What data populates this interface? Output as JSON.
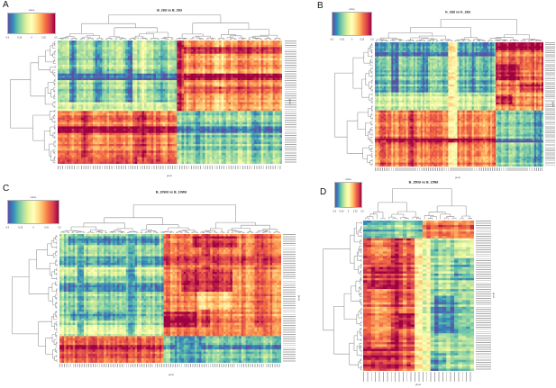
{
  "figure": {
    "background": "#ffffff",
    "colormap": [
      "#5e4fa2",
      "#3288bd",
      "#66c2a5",
      "#abdda4",
      "#e6f598",
      "#ffffbf",
      "#fee08b",
      "#fdae61",
      "#f46d43",
      "#d53e4f",
      "#9e0142"
    ],
    "dendrogram_color": "#8f8f8f",
    "label_text_color": "#555555"
  },
  "panels": [
    {
      "label": "A",
      "title": "B_28d vs B_28d",
      "xlabel": "gene",
      "ylabel": "gene",
      "colorbar": {
        "label": "value",
        "ticks": [
          "-0.5",
          "-0.25",
          "0",
          "0.25",
          "0.5"
        ]
      },
      "chart_data": {
        "type": "heatmap",
        "rows": 56,
        "cols": 96,
        "value_range": [
          -1,
          1
        ],
        "row_dendrogram": true,
        "col_dendrogram": true,
        "seed": 11,
        "texture": {
          "col_stripe": 0.18,
          "row_stripe": 0.14,
          "noise": 0.1
        },
        "blocks": [
          [
            0,
            0.57,
            0,
            0.53,
            -0.42
          ],
          [
            0,
            0.57,
            0.53,
            1,
            0.45
          ],
          [
            0.57,
            1,
            0,
            0.53,
            0.55
          ],
          [
            0.57,
            1,
            0.53,
            1,
            -0.45
          ],
          [
            0,
            0.57,
            0.05,
            0.08,
            -0.75
          ],
          [
            0,
            0.57,
            0.17,
            0.2,
            -0.7
          ],
          [
            0,
            0.57,
            0.3,
            0.33,
            -0.75
          ],
          [
            0,
            0.57,
            0.44,
            0.47,
            -0.65
          ],
          [
            0,
            0.57,
            0.36,
            0.4,
            -0.15
          ],
          [
            0,
            0.57,
            0.53,
            0.565,
            0.9
          ],
          [
            0,
            0.57,
            0.7,
            0.74,
            0.2
          ],
          [
            0.06,
            0.1,
            0.53,
            1,
            0.8
          ],
          [
            0.38,
            0.42,
            0.53,
            1,
            0.75
          ],
          [
            0.5,
            0.57,
            0,
            0.53,
            -0.2
          ],
          [
            0.27,
            0.315,
            0,
            0.53,
            -0.95
          ],
          [
            0.27,
            0.315,
            0.53,
            1,
            0.95
          ],
          [
            0.57,
            1,
            0.1,
            0.14,
            0.8
          ],
          [
            0.57,
            1,
            0.35,
            0.4,
            0.85
          ],
          [
            0.57,
            1,
            0.6,
            0.64,
            -0.7
          ],
          [
            0.57,
            1,
            0.86,
            0.9,
            -0.65
          ],
          [
            0.7,
            0.745,
            0,
            0.53,
            0.95
          ],
          [
            0.7,
            0.745,
            0.53,
            1,
            -0.9
          ],
          [
            0.95,
            1,
            0,
            0.53,
            0.6
          ]
        ]
      }
    },
    {
      "label": "B",
      "title": "K_28d vs K_28d",
      "xlabel": "gene",
      "ylabel": "gene",
      "colorbar": {
        "label": "value",
        "ticks": [
          "-0.5",
          "-0.25",
          "0",
          "0.25",
          "0.5"
        ]
      },
      "chart_data": {
        "type": "heatmap",
        "rows": 62,
        "cols": 92,
        "value_range": [
          -1,
          1
        ],
        "row_dendrogram": true,
        "col_dendrogram": true,
        "seed": 23,
        "texture": {
          "col_stripe": 0.17,
          "row_stripe": 0.16,
          "noise": 0.1
        },
        "blocks": [
          [
            0,
            0.4,
            0,
            0.72,
            -0.55
          ],
          [
            0,
            0.12,
            0,
            0.72,
            -0.8
          ],
          [
            0,
            0.4,
            0.72,
            1,
            0.6
          ],
          [
            0,
            0.07,
            0.72,
            1,
            0.95
          ],
          [
            0.18,
            0.3,
            0.72,
            0.86,
            0.95
          ],
          [
            0.33,
            0.4,
            0.86,
            1,
            0.85
          ],
          [
            0.4,
            0.55,
            0,
            0.72,
            -0.25
          ],
          [
            0.4,
            0.55,
            0.72,
            1,
            0.5
          ],
          [
            0.42,
            0.5,
            0.72,
            0.82,
            0.9
          ],
          [
            0.55,
            1,
            0,
            0.72,
            0.55
          ],
          [
            0.55,
            1,
            0.72,
            1,
            -0.45
          ],
          [
            0,
            0.4,
            0.1,
            0.14,
            -0.85
          ],
          [
            0,
            0.4,
            0.27,
            0.31,
            -0.8
          ],
          [
            0,
            0.4,
            0.55,
            0.6,
            -0.75
          ],
          [
            0,
            1,
            0.44,
            0.49,
            0.0
          ],
          [
            0.55,
            1,
            0.03,
            0.07,
            0.85
          ],
          [
            0.55,
            1,
            0.2,
            0.24,
            0.8
          ],
          [
            0.55,
            1,
            0.93,
            1,
            -0.7
          ],
          [
            0.77,
            0.81,
            0,
            0.72,
            0.97
          ],
          [
            0.77,
            0.81,
            0.72,
            1,
            -0.95
          ]
        ]
      }
    },
    {
      "label": "C",
      "title": "B_10Wd vs B_10Wd",
      "xlabel": "gene",
      "ylabel": "gene",
      "colorbar": {
        "label": "value",
        "ticks": [
          "-0.5",
          "-0.25",
          "0",
          "0.25",
          "0.5"
        ]
      },
      "chart_data": {
        "type": "heatmap",
        "rows": 58,
        "cols": 100,
        "value_range": [
          -1,
          1
        ],
        "row_dendrogram": true,
        "col_dendrogram": true,
        "seed": 37,
        "texture": {
          "col_stripe": 0.16,
          "row_stripe": 0.14,
          "noise": 0.1
        },
        "blocks": [
          [
            0,
            0.79,
            0,
            0.47,
            -0.42
          ],
          [
            0,
            0.79,
            0.47,
            1,
            0.55
          ],
          [
            0.79,
            1,
            0,
            0.47,
            0.65
          ],
          [
            0.79,
            1,
            0.47,
            1,
            -0.5
          ],
          [
            0.02,
            0.09,
            0.04,
            0.45,
            -0.75
          ],
          [
            0.17,
            0.24,
            0,
            0.47,
            -0.7
          ],
          [
            0.38,
            0.45,
            0,
            0.47,
            -0.72
          ],
          [
            0.6,
            0.67,
            0.05,
            0.3,
            -0.7
          ],
          [
            0.26,
            0.33,
            0,
            0.47,
            -0.15
          ],
          [
            0.7,
            0.78,
            0,
            0.47,
            -0.2
          ],
          [
            0,
            0.79,
            0.085,
            0.115,
            -0.7
          ],
          [
            0,
            0.79,
            0.3,
            0.34,
            -0.65
          ],
          [
            0,
            0.79,
            0.64,
            0.68,
            0.85
          ],
          [
            0,
            0.79,
            0.88,
            0.92,
            0.8
          ],
          [
            0.02,
            0.1,
            0.6,
            0.8,
            0.85
          ],
          [
            0.17,
            0.24,
            0.47,
            1,
            0.8
          ],
          [
            0.28,
            0.44,
            0.55,
            0.78,
            0.9
          ],
          [
            0.45,
            0.58,
            0.62,
            0.78,
            0.3
          ],
          [
            0.6,
            0.72,
            0.47,
            0.62,
            0.95
          ],
          [
            0.72,
            0.79,
            0.47,
            1,
            0.45
          ],
          [
            0.86,
            0.9,
            0,
            0.47,
            0.9
          ],
          [
            0.86,
            0.9,
            0.47,
            1,
            -0.85
          ],
          [
            0.79,
            1,
            0.52,
            0.64,
            -0.75
          ]
        ]
      }
    },
    {
      "label": "D",
      "title": "B_15Nd vs B_15Nd",
      "xlabel": "gene",
      "ylabel": "gene",
      "colorbar": {
        "label": "value",
        "ticks": [
          "-0.5",
          "-0.25",
          "0",
          "0.25",
          "0.5"
        ]
      },
      "chart_data": {
        "type": "heatmap",
        "rows": 68,
        "cols": 28,
        "value_range": [
          -1,
          1
        ],
        "row_dendrogram": true,
        "col_dendrogram": true,
        "seed": 51,
        "texture": {
          "col_stripe": 0.15,
          "row_stripe": 0.18,
          "noise": 0.12
        },
        "blocks": [
          [
            0,
            0.115,
            0,
            0.55,
            -0.5
          ],
          [
            0,
            0.115,
            0.55,
            1,
            0.55
          ],
          [
            0.115,
            1,
            0,
            0.55,
            0.6
          ],
          [
            0.115,
            1,
            0.55,
            1,
            -0.45
          ],
          [
            0.115,
            1,
            0,
            0.07,
            0.85
          ],
          [
            0.115,
            1,
            0.25,
            0.32,
            0.85
          ],
          [
            0.115,
            1,
            0.46,
            0.52,
            0.25
          ],
          [
            0.3,
            0.45,
            0.07,
            0.25,
            0.9
          ],
          [
            0.62,
            0.72,
            0.32,
            0.46,
            0.92
          ],
          [
            0.85,
            1,
            0,
            0.25,
            0.9
          ],
          [
            0.115,
            1,
            0.55,
            0.62,
            -0.1
          ],
          [
            0.115,
            0.25,
            0.82,
            1,
            -0.2
          ],
          [
            0.25,
            0.4,
            0.82,
            1,
            -0.6
          ],
          [
            0.5,
            0.75,
            0.66,
            0.82,
            -0.75
          ],
          [
            0.88,
            1,
            0.62,
            0.75,
            -0.7
          ]
        ]
      }
    }
  ]
}
